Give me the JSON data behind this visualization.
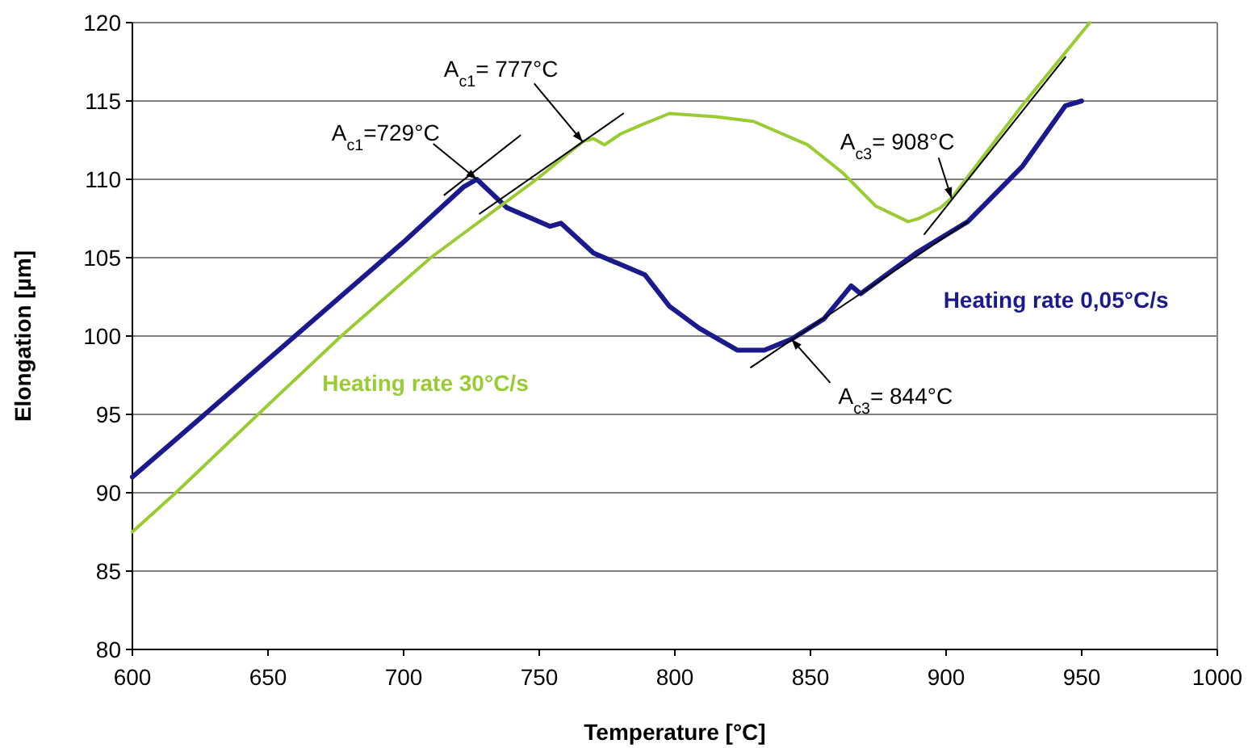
{
  "chart_data": {
    "type": "line",
    "xlabel": "Temperature [°C]",
    "ylabel": "Elongation [µm]",
    "xlim": [
      600,
      1000
    ],
    "xticks": [
      600,
      650,
      700,
      750,
      800,
      850,
      900,
      950,
      1000
    ],
    "ylim": [
      80,
      120
    ],
    "yticks": [
      80,
      85,
      90,
      95,
      100,
      105,
      110,
      115,
      120
    ],
    "grid": "y",
    "marker": "none",
    "line_style": "solid",
    "series": [
      {
        "name": "Heating rate 0,05°C/s",
        "color": "#1a1a8c",
        "x": [
          600,
          650,
          700,
          722,
          727,
          738,
          754,
          758,
          770,
          789,
          798,
          809,
          823,
          833,
          843,
          855,
          865,
          868.5,
          874,
          889,
          908,
          928,
          944,
          950
        ],
        "values": [
          91,
          98.5,
          106,
          109.5,
          110,
          108.2,
          107,
          107.2,
          105.3,
          103.9,
          101.9,
          100.5,
          99.1,
          99.1,
          99.8,
          101.1,
          103.2,
          102.7,
          103.4,
          105.3,
          107.3,
          110.8,
          114.7,
          115
        ]
      },
      {
        "name": "Heating rate 30°C/s",
        "color": "#99cc33",
        "x": [
          600,
          616,
          650,
          677,
          710,
          749,
          766,
          770,
          774,
          780,
          788,
          798,
          815,
          829,
          849,
          862,
          874,
          886,
          890,
          898,
          902,
          928,
          953
        ],
        "values": [
          87.5,
          90,
          95.6,
          100,
          105,
          110,
          112.4,
          112.6,
          112.2,
          112.9,
          113.5,
          114.2,
          114,
          113.7,
          112.2,
          110.4,
          108.3,
          107.3,
          107.5,
          108.2,
          108.8,
          114.7,
          120
        ]
      },
      {
        "color": "#000000",
        "x": [
          715,
          743
        ],
        "values": [
          109,
          112.8
        ]
      },
      {
        "color": "#000000",
        "x": [
          728,
          781
        ],
        "values": [
          107.8,
          114.2
        ]
      },
      {
        "color": "#000000",
        "x": [
          828,
          908
        ],
        "values": [
          98,
          107.3
        ]
      },
      {
        "color": "#000000",
        "x": [
          892,
          944
        ],
        "values": [
          106.5,
          117.8
        ]
      }
    ],
    "annotations": [
      {
        "text": "A$_{c1}$=729°C",
        "x": 727,
        "y": 110
      },
      {
        "text": "A$_{c1}$= 777°C",
        "x": 766,
        "y": 112.4
      },
      {
        "text": "A$_{c3}$= 908°C",
        "x": 902,
        "y": 108.8
      },
      {
        "text": "A$_{c3}$= 844°C",
        "x": 843,
        "y": 99.8
      }
    ]
  }
}
